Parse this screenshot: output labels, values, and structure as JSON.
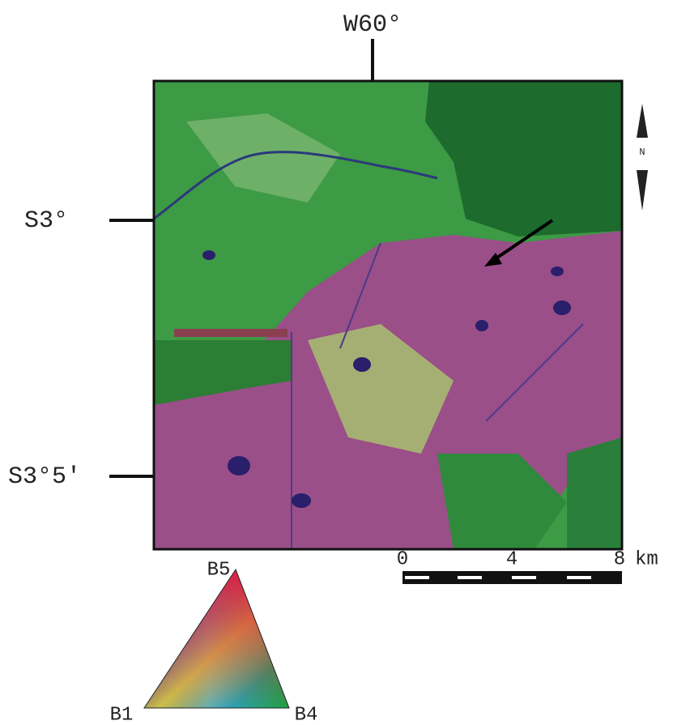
{
  "map": {
    "top_label": "W60°",
    "left_labels": [
      "S3°",
      "S3°5′"
    ],
    "north": "N",
    "scale_bar": {
      "labels": [
        "0",
        "4",
        "8"
      ],
      "unit": "km"
    },
    "legend": {
      "top": "B5",
      "left": "B1",
      "right": "B4"
    }
  }
}
